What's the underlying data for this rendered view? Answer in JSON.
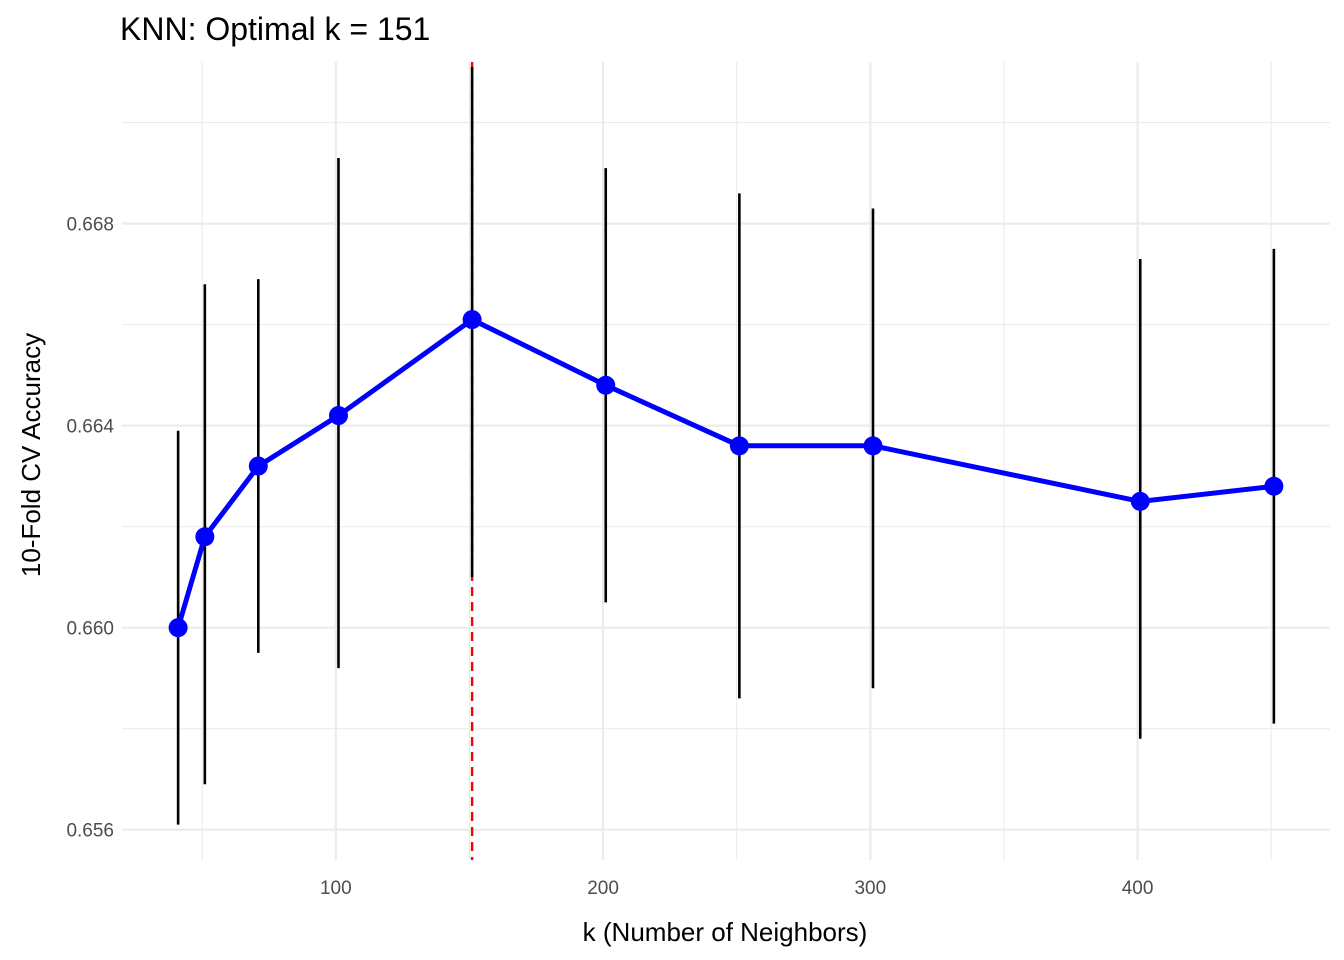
{
  "chart_data": {
    "type": "line",
    "title": "KNN: Optimal k = 151",
    "xlabel": "k (Number of Neighbors)",
    "ylabel": "10-Fold CV Accuracy",
    "xlim": [
      20,
      472
    ],
    "ylim": [
      0.6554,
      0.6712
    ],
    "x_ticks": [
      100,
      200,
      300,
      400
    ],
    "x_tick_labels": [
      "100",
      "200",
      "300",
      "400"
    ],
    "x_minor_ticks": [
      50,
      150,
      250,
      350,
      450
    ],
    "y_ticks": [
      0.656,
      0.66,
      0.664,
      0.668
    ],
    "y_tick_labels": [
      "0.656",
      "0.660",
      "0.664",
      "0.668"
    ],
    "y_minor_ticks": [
      0.658,
      0.662,
      0.666,
      0.67
    ],
    "grid": true,
    "series": [
      {
        "x": [
          41,
          51,
          71,
          101,
          151,
          201,
          251,
          301,
          401,
          451
        ],
        "y": [
          0.66,
          0.6618,
          0.6632,
          0.6642,
          0.6661,
          0.6648,
          0.6636,
          0.6636,
          0.6625,
          0.6628
        ],
        "error_low": [
          0.6561,
          0.6569,
          0.6595,
          0.6592,
          0.661,
          0.6605,
          0.6586,
          0.6588,
          0.6578,
          0.6581
        ],
        "error_high": [
          0.6639,
          0.6668,
          0.6669,
          0.6693,
          0.6711,
          0.6691,
          0.6686,
          0.6683,
          0.6673,
          0.6675
        ],
        "color": "#0000ff",
        "error_color": "#000000"
      }
    ],
    "vline": {
      "x": 151,
      "color": "#ff0000",
      "style": "dashed"
    }
  }
}
